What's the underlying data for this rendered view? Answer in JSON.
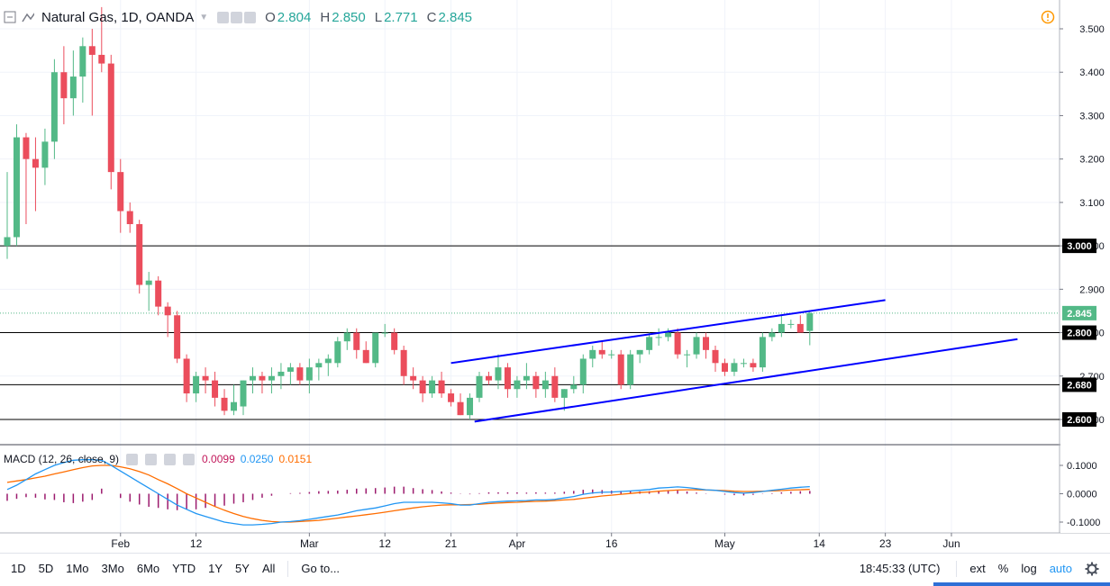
{
  "header": {
    "symbol_title": "Natural Gas, 1D, OANDA",
    "open_label": "O",
    "open_value": "2.804",
    "high_label": "H",
    "high_value": "2.850",
    "low_label": "L",
    "low_value": "2.771",
    "close_label": "C",
    "close_value": "2.845"
  },
  "macd_legend": {
    "title": "MACD (12, 26, close, 9)",
    "hist_value": "0.0099",
    "macd_value": "0.0250",
    "signal_value": "0.0151"
  },
  "colors": {
    "up": "#53b987",
    "down": "#eb4d5c",
    "trendline": "#0000ff",
    "macd_line": "#2196f3",
    "signal_line": "#ff6d00",
    "histogram": "#9c1b6e",
    "price_badge": "#53b987",
    "alert_icon": "#ff9800"
  },
  "price_axis": {
    "ticks": [
      "3.500",
      "3.400",
      "3.300",
      "3.200",
      "3.100",
      "3.000",
      "2.900",
      "2.800",
      "2.700",
      "2.600"
    ],
    "badges": [
      {
        "label": "3.000",
        "value": 3.0
      },
      {
        "label": "2.845",
        "value": 2.845,
        "current": true
      },
      {
        "label": "2.800",
        "value": 2.8
      },
      {
        "label": "2.680",
        "value": 2.68
      },
      {
        "label": "2.600",
        "value": 2.6
      }
    ],
    "horizontal_levels": [
      3.0,
      2.8,
      2.68,
      2.6
    ]
  },
  "macd_axis": {
    "ticks": [
      "0.1000",
      "0.0000",
      "-0.1000"
    ]
  },
  "time_axis": {
    "ticks": [
      {
        "label": "Feb",
        "idx": 12
      },
      {
        "label": "12",
        "idx": 20
      },
      {
        "label": "Mar",
        "idx": 32
      },
      {
        "label": "12",
        "idx": 40
      },
      {
        "label": "21",
        "idx": 47
      },
      {
        "label": "Apr",
        "idx": 54
      },
      {
        "label": "16",
        "idx": 64
      },
      {
        "label": "May",
        "idx": 76
      },
      {
        "label": "14",
        "idx": 86
      },
      {
        "label": "23",
        "idx": 93
      },
      {
        "label": "Jun",
        "idx": 100
      }
    ]
  },
  "chart_data": {
    "type": "candlestick",
    "title": "Natural Gas, 1D, OANDA",
    "ylim": [
      2.55,
      3.55
    ],
    "candles": [
      {
        "o": 3.0,
        "h": 3.17,
        "l": 2.97,
        "c": 3.02
      },
      {
        "o": 3.02,
        "h": 3.28,
        "l": 3.0,
        "c": 3.25
      },
      {
        "o": 3.25,
        "h": 3.26,
        "l": 3.05,
        "c": 3.2
      },
      {
        "o": 3.2,
        "h": 3.25,
        "l": 3.08,
        "c": 3.18
      },
      {
        "o": 3.18,
        "h": 3.27,
        "l": 3.14,
        "c": 3.24
      },
      {
        "o": 3.24,
        "h": 3.43,
        "l": 3.2,
        "c": 3.4
      },
      {
        "o": 3.4,
        "h": 3.46,
        "l": 3.28,
        "c": 3.34
      },
      {
        "o": 3.34,
        "h": 3.45,
        "l": 3.3,
        "c": 3.39
      },
      {
        "o": 3.39,
        "h": 3.48,
        "l": 3.33,
        "c": 3.46
      },
      {
        "o": 3.46,
        "h": 3.5,
        "l": 3.3,
        "c": 3.44
      },
      {
        "o": 3.44,
        "h": 3.55,
        "l": 3.4,
        "c": 3.42
      },
      {
        "o": 3.42,
        "h": 3.44,
        "l": 3.13,
        "c": 3.17
      },
      {
        "o": 3.17,
        "h": 3.2,
        "l": 3.03,
        "c": 3.08
      },
      {
        "o": 3.08,
        "h": 3.1,
        "l": 3.03,
        "c": 3.05
      },
      {
        "o": 3.05,
        "h": 3.06,
        "l": 2.89,
        "c": 2.91
      },
      {
        "o": 2.91,
        "h": 2.94,
        "l": 2.85,
        "c": 2.92
      },
      {
        "o": 2.92,
        "h": 2.93,
        "l": 2.84,
        "c": 2.86
      },
      {
        "o": 2.86,
        "h": 2.87,
        "l": 2.79,
        "c": 2.84
      },
      {
        "o": 2.84,
        "h": 2.85,
        "l": 2.73,
        "c": 2.74
      },
      {
        "o": 2.74,
        "h": 2.75,
        "l": 2.64,
        "c": 2.66
      },
      {
        "o": 2.66,
        "h": 2.71,
        "l": 2.64,
        "c": 2.7
      },
      {
        "o": 2.7,
        "h": 2.72,
        "l": 2.66,
        "c": 2.69
      },
      {
        "o": 2.69,
        "h": 2.71,
        "l": 2.63,
        "c": 2.65
      },
      {
        "o": 2.65,
        "h": 2.67,
        "l": 2.61,
        "c": 2.62
      },
      {
        "o": 2.62,
        "h": 2.68,
        "l": 2.61,
        "c": 2.64
      },
      {
        "o": 2.63,
        "h": 2.69,
        "l": 2.61,
        "c": 2.69
      },
      {
        "o": 2.69,
        "h": 2.72,
        "l": 2.66,
        "c": 2.7
      },
      {
        "o": 2.7,
        "h": 2.71,
        "l": 2.66,
        "c": 2.69
      },
      {
        "o": 2.69,
        "h": 2.72,
        "l": 2.66,
        "c": 2.7
      },
      {
        "o": 2.7,
        "h": 2.73,
        "l": 2.67,
        "c": 2.71
      },
      {
        "o": 2.71,
        "h": 2.73,
        "l": 2.68,
        "c": 2.72
      },
      {
        "o": 2.72,
        "h": 2.73,
        "l": 2.68,
        "c": 2.69
      },
      {
        "o": 2.69,
        "h": 2.74,
        "l": 2.66,
        "c": 2.72
      },
      {
        "o": 2.72,
        "h": 2.74,
        "l": 2.69,
        "c": 2.73
      },
      {
        "o": 2.73,
        "h": 2.75,
        "l": 2.7,
        "c": 2.74
      },
      {
        "o": 2.73,
        "h": 2.79,
        "l": 2.72,
        "c": 2.78
      },
      {
        "o": 2.78,
        "h": 2.81,
        "l": 2.76,
        "c": 2.8
      },
      {
        "o": 2.8,
        "h": 2.81,
        "l": 2.74,
        "c": 2.76
      },
      {
        "o": 2.76,
        "h": 2.78,
        "l": 2.73,
        "c": 2.73
      },
      {
        "o": 2.73,
        "h": 2.8,
        "l": 2.72,
        "c": 2.8
      },
      {
        "o": 2.8,
        "h": 2.82,
        "l": 2.79,
        "c": 2.8
      },
      {
        "o": 2.8,
        "h": 2.81,
        "l": 2.75,
        "c": 2.76
      },
      {
        "o": 2.76,
        "h": 2.77,
        "l": 2.68,
        "c": 2.7
      },
      {
        "o": 2.7,
        "h": 2.72,
        "l": 2.67,
        "c": 2.69
      },
      {
        "o": 2.69,
        "h": 2.7,
        "l": 2.64,
        "c": 2.66
      },
      {
        "o": 2.66,
        "h": 2.7,
        "l": 2.65,
        "c": 2.69
      },
      {
        "o": 2.69,
        "h": 2.71,
        "l": 2.65,
        "c": 2.66
      },
      {
        "o": 2.66,
        "h": 2.67,
        "l": 2.63,
        "c": 2.64
      },
      {
        "o": 2.64,
        "h": 2.66,
        "l": 2.61,
        "c": 2.61
      },
      {
        "o": 2.61,
        "h": 2.66,
        "l": 2.6,
        "c": 2.65
      },
      {
        "o": 2.65,
        "h": 2.71,
        "l": 2.64,
        "c": 2.7
      },
      {
        "o": 2.7,
        "h": 2.71,
        "l": 2.68,
        "c": 2.69
      },
      {
        "o": 2.69,
        "h": 2.75,
        "l": 2.67,
        "c": 2.72
      },
      {
        "o": 2.72,
        "h": 2.73,
        "l": 2.65,
        "c": 2.67
      },
      {
        "o": 2.67,
        "h": 2.7,
        "l": 2.65,
        "c": 2.69
      },
      {
        "o": 2.69,
        "h": 2.73,
        "l": 2.67,
        "c": 2.7
      },
      {
        "o": 2.7,
        "h": 2.71,
        "l": 2.65,
        "c": 2.67
      },
      {
        "o": 2.67,
        "h": 2.71,
        "l": 2.65,
        "c": 2.69
      },
      {
        "o": 2.7,
        "h": 2.72,
        "l": 2.64,
        "c": 2.65
      },
      {
        "o": 2.65,
        "h": 2.67,
        "l": 2.62,
        "c": 2.67
      },
      {
        "o": 2.67,
        "h": 2.7,
        "l": 2.66,
        "c": 2.68
      },
      {
        "o": 2.68,
        "h": 2.75,
        "l": 2.66,
        "c": 2.74
      },
      {
        "o": 2.74,
        "h": 2.77,
        "l": 2.72,
        "c": 2.76
      },
      {
        "o": 2.76,
        "h": 2.78,
        "l": 2.74,
        "c": 2.75
      },
      {
        "o": 2.75,
        "h": 2.76,
        "l": 2.74,
        "c": 2.75
      },
      {
        "o": 2.75,
        "h": 2.76,
        "l": 2.67,
        "c": 2.68
      },
      {
        "o": 2.68,
        "h": 2.76,
        "l": 2.67,
        "c": 2.75
      },
      {
        "o": 2.75,
        "h": 2.76,
        "l": 2.73,
        "c": 2.76
      },
      {
        "o": 2.76,
        "h": 2.8,
        "l": 2.75,
        "c": 2.79
      },
      {
        "o": 2.79,
        "h": 2.81,
        "l": 2.77,
        "c": 2.79
      },
      {
        "o": 2.79,
        "h": 2.81,
        "l": 2.78,
        "c": 2.8
      },
      {
        "o": 2.8,
        "h": 2.81,
        "l": 2.74,
        "c": 2.75
      },
      {
        "o": 2.75,
        "h": 2.76,
        "l": 2.72,
        "c": 2.75
      },
      {
        "o": 2.75,
        "h": 2.8,
        "l": 2.74,
        "c": 2.79
      },
      {
        "o": 2.79,
        "h": 2.8,
        "l": 2.74,
        "c": 2.76
      },
      {
        "o": 2.76,
        "h": 2.77,
        "l": 2.71,
        "c": 2.73
      },
      {
        "o": 2.73,
        "h": 2.74,
        "l": 2.7,
        "c": 2.71
      },
      {
        "o": 2.71,
        "h": 2.74,
        "l": 2.7,
        "c": 2.73
      },
      {
        "o": 2.73,
        "h": 2.74,
        "l": 2.72,
        "c": 2.73
      },
      {
        "o": 2.73,
        "h": 2.74,
        "l": 2.71,
        "c": 2.72
      },
      {
        "o": 2.72,
        "h": 2.8,
        "l": 2.71,
        "c": 2.79
      },
      {
        "o": 2.79,
        "h": 2.81,
        "l": 2.78,
        "c": 2.8
      },
      {
        "o": 2.8,
        "h": 2.84,
        "l": 2.79,
        "c": 2.82
      },
      {
        "o": 2.82,
        "h": 2.83,
        "l": 2.81,
        "c": 2.82
      },
      {
        "o": 2.82,
        "h": 2.84,
        "l": 2.8,
        "c": 2.8
      },
      {
        "o": 2.804,
        "h": 2.85,
        "l": 2.771,
        "c": 2.845
      }
    ],
    "trendlines": [
      {
        "x1": 47,
        "y1": 2.73,
        "x2": 93,
        "y2": 2.875
      },
      {
        "x1": 49.5,
        "y1": 2.595,
        "x2": 107,
        "y2": 2.785
      }
    ],
    "macd": {
      "macd_line": [
        0.015,
        0.03,
        0.05,
        0.07,
        0.085,
        0.1,
        0.11,
        0.118,
        0.12,
        0.12,
        0.118,
        0.1,
        0.08,
        0.06,
        0.04,
        0.02,
        0.0,
        -0.02,
        -0.04,
        -0.055,
        -0.07,
        -0.08,
        -0.09,
        -0.1,
        -0.105,
        -0.11,
        -0.11,
        -0.108,
        -0.105,
        -0.1,
        -0.098,
        -0.095,
        -0.09,
        -0.085,
        -0.08,
        -0.075,
        -0.068,
        -0.06,
        -0.055,
        -0.05,
        -0.043,
        -0.035,
        -0.03,
        -0.03,
        -0.03,
        -0.03,
        -0.032,
        -0.035,
        -0.04,
        -0.04,
        -0.035,
        -0.03,
        -0.028,
        -0.026,
        -0.025,
        -0.024,
        -0.022,
        -0.022,
        -0.02,
        -0.015,
        -0.01,
        -0.002,
        0.003,
        0.005,
        0.006,
        0.008,
        0.01,
        0.012,
        0.015,
        0.02,
        0.022,
        0.024,
        0.022,
        0.018,
        0.014,
        0.012,
        0.008,
        0.004,
        0.002,
        0.004,
        0.008,
        0.012,
        0.016,
        0.02,
        0.023,
        0.025
      ],
      "signal_line": [
        0.04,
        0.045,
        0.05,
        0.056,
        0.062,
        0.07,
        0.077,
        0.085,
        0.092,
        0.098,
        0.1,
        0.1,
        0.095,
        0.088,
        0.078,
        0.066,
        0.05,
        0.035,
        0.018,
        0.0,
        -0.015,
        -0.03,
        -0.045,
        -0.058,
        -0.07,
        -0.08,
        -0.088,
        -0.094,
        -0.098,
        -0.1,
        -0.1,
        -0.098,
        -0.096,
        -0.094,
        -0.09,
        -0.086,
        -0.082,
        -0.078,
        -0.074,
        -0.07,
        -0.065,
        -0.06,
        -0.055,
        -0.05,
        -0.046,
        -0.043,
        -0.04,
        -0.039,
        -0.039,
        -0.038,
        -0.037,
        -0.035,
        -0.033,
        -0.031,
        -0.03,
        -0.028,
        -0.027,
        -0.026,
        -0.024,
        -0.022,
        -0.02,
        -0.016,
        -0.012,
        -0.008,
        -0.005,
        -0.002,
        0.001,
        0.004,
        0.006,
        0.009,
        0.011,
        0.013,
        0.014,
        0.014,
        0.013,
        0.012,
        0.011,
        0.009,
        0.008,
        0.008,
        0.009,
        0.01,
        0.011,
        0.013,
        0.014,
        0.0151
      ],
      "histogram": [
        -0.025,
        -0.018,
        -0.012,
        -0.014,
        -0.02,
        -0.022,
        -0.03,
        -0.033,
        -0.028,
        -0.022,
        0.018,
        0.0,
        -0.015,
        -0.028,
        -0.038,
        -0.046,
        -0.05,
        -0.055,
        -0.058,
        -0.055,
        -0.055,
        -0.05,
        -0.045,
        -0.042,
        -0.035,
        -0.03,
        -0.022,
        -0.014,
        -0.007,
        0.0,
        0.002,
        0.003,
        0.006,
        0.009,
        0.01,
        0.011,
        0.014,
        0.018,
        0.019,
        0.02,
        0.022,
        0.025,
        0.025,
        0.02,
        0.016,
        0.013,
        0.008,
        0.004,
        -0.001,
        -0.002,
        0.002,
        0.005,
        0.005,
        0.005,
        0.005,
        0.004,
        0.005,
        0.004,
        0.004,
        0.007,
        0.01,
        0.014,
        0.015,
        0.013,
        0.011,
        0.01,
        0.009,
        0.008,
        0.009,
        0.011,
        0.011,
        0.011,
        0.008,
        0.004,
        0.001,
        0.0,
        -0.003,
        -0.005,
        -0.006,
        -0.004,
        -0.001,
        0.002,
        0.005,
        0.007,
        0.009,
        0.0099
      ]
    }
  },
  "bottom_bar": {
    "ranges": [
      "1D",
      "5D",
      "1Mo",
      "3Mo",
      "6Mo",
      "YTD",
      "1Y",
      "5Y",
      "All"
    ],
    "goto_label": "Go to...",
    "clock": "18:45:33 (UTC)",
    "ext": "ext",
    "percent": "%",
    "log": "log",
    "auto": "auto"
  }
}
